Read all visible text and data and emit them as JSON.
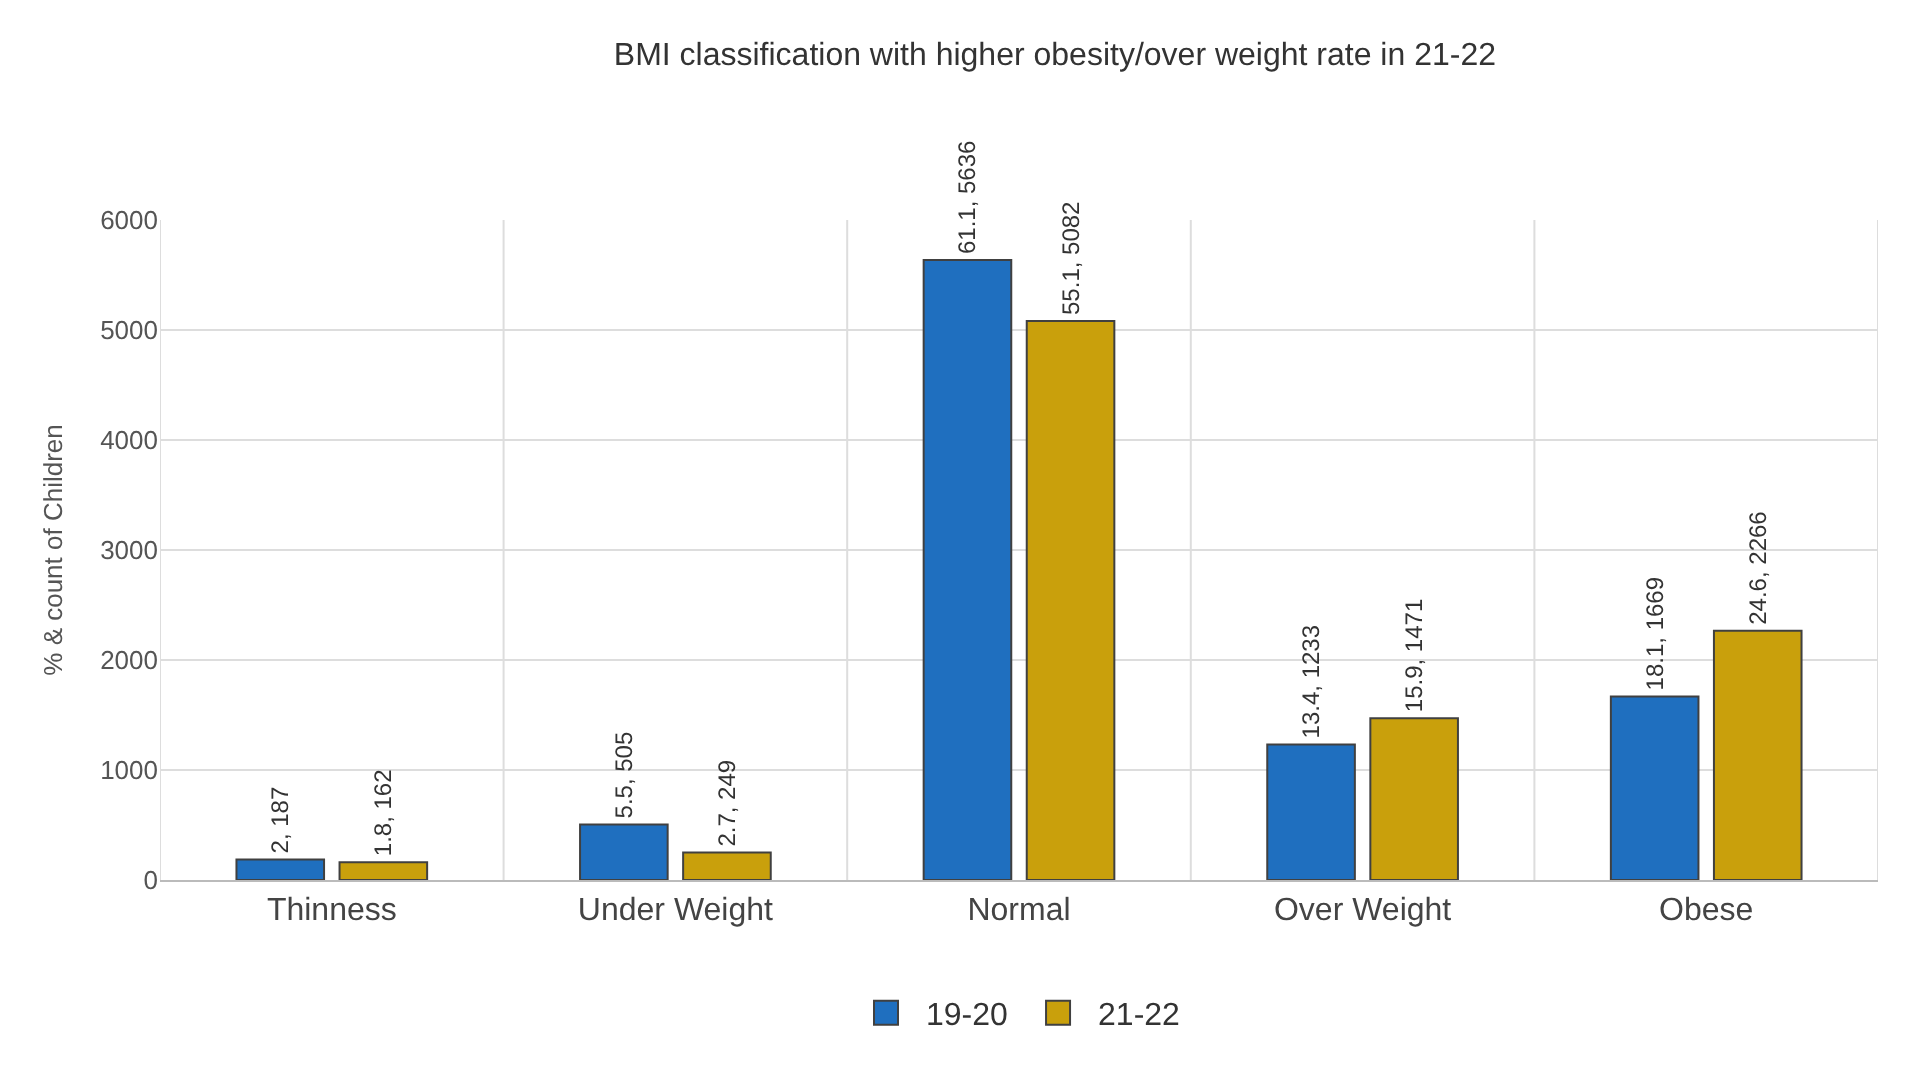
{
  "chart_data": {
    "type": "bar",
    "title": "BMI classification with higher obesity/over weight rate in 21-22",
    "ylabel": "% & count of Children",
    "categories": [
      "Thinness",
      "Under Weight",
      "Normal",
      "Over Weight",
      "Obese"
    ],
    "series": [
      {
        "name": "19-20",
        "color": "#1f6fbf",
        "values": [
          187,
          505,
          5636,
          1233,
          1669
        ],
        "value_labels": [
          "2, 187",
          "5.5, 505",
          "61.1, 5636",
          "13.4, 1233",
          "18.1, 1669"
        ]
      },
      {
        "name": "21-22",
        "color": "#c9a00c",
        "values": [
          162,
          249,
          5082,
          1471,
          2266
        ],
        "value_labels": [
          "1.8, 162",
          "2.7, 249",
          "55.1, 5082",
          "15.9, 1471",
          "24.6, 2266"
        ]
      }
    ],
    "ylim": [
      0,
      6000
    ],
    "yticks": [
      0,
      1000,
      2000,
      3000,
      4000,
      5000,
      6000
    ],
    "grid": true,
    "legend": "bottom"
  }
}
